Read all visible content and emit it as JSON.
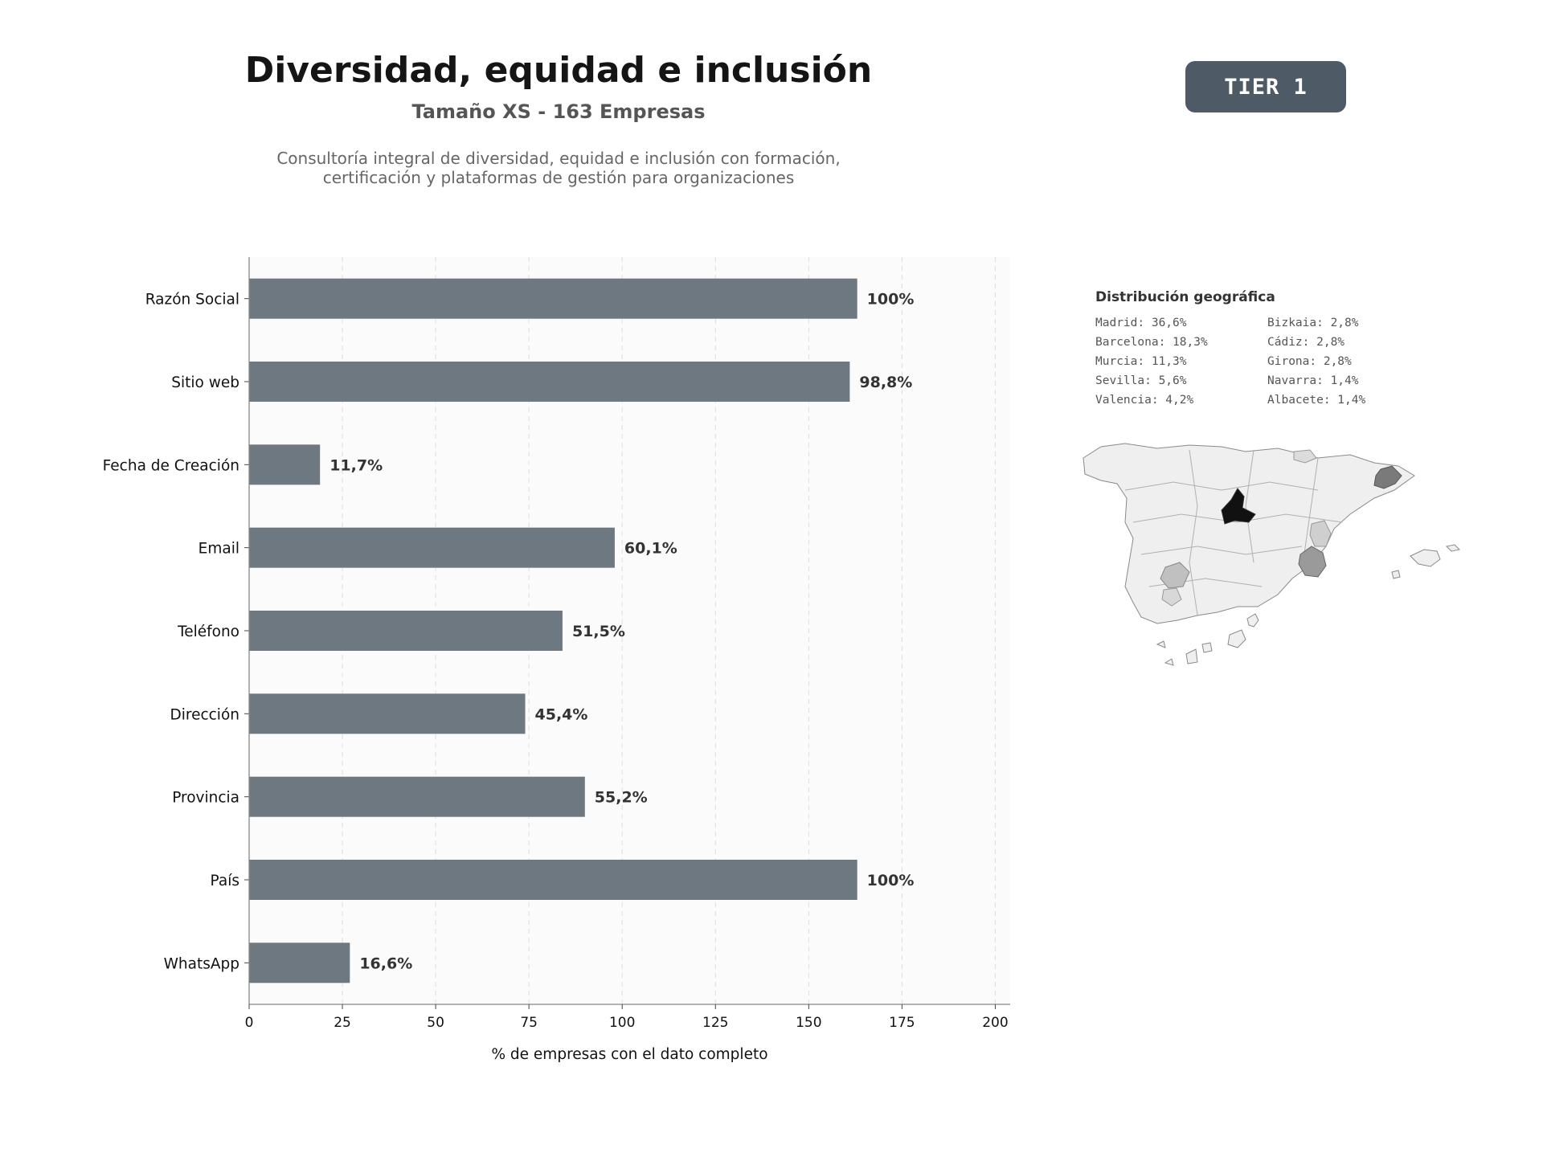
{
  "header": {
    "title": "Diversidad, equidad e inclusión",
    "subtitle": "Tamaño XS - 163 Empresas",
    "description_lines": [
      "Consultoría integral de diversidad, equidad e inclusión con formación,",
      "certificación y plataformas de gestión para organizaciones"
    ],
    "tier_badge": "TIER 1"
  },
  "chart_data": {
    "type": "bar",
    "orientation": "horizontal",
    "categories": [
      "Razón Social",
      "Sitio web",
      "Fecha de Creación",
      "Email",
      "Teléfono",
      "Dirección",
      "Provincia",
      "País",
      "WhatsApp"
    ],
    "values": [
      163,
      161,
      19,
      98,
      84,
      74,
      90,
      163,
      27
    ],
    "value_labels": [
      "100%",
      "98,8%",
      "11,7%",
      "60,1%",
      "51,5%",
      "45,4%",
      "55,2%",
      "100%",
      "16,6%"
    ],
    "xlabel": "% de empresas con el dato completo",
    "ylabel": "",
    "xlim": [
      0,
      204
    ],
    "xticks": [
      0,
      25,
      50,
      75,
      100,
      125,
      150,
      175,
      200
    ],
    "grid": "vertical dashed",
    "bar_color": "#6e7881"
  },
  "geo": {
    "title": "Distribución geográfica",
    "items": [
      "Madrid: 36,6%",
      "Bizkaia: 2,8%",
      "Barcelona: 18,3%",
      "Cádiz: 2,8%",
      "Murcia: 11,3%",
      "Girona: 2,8%",
      "Sevilla: 5,6%",
      "Navarra: 1,4%",
      "Valencia: 4,2%",
      "Albacete: 1,4%"
    ],
    "map_highlights": [
      {
        "region": "Madrid",
        "color": "#111111"
      },
      {
        "region": "Barcelona",
        "color": "#7a7a7a"
      },
      {
        "region": "Murcia",
        "color": "#9a9a9a"
      },
      {
        "region": "Sevilla",
        "color": "#c0c0c0"
      },
      {
        "region": "Valencia",
        "color": "#cfcfcf"
      }
    ]
  }
}
